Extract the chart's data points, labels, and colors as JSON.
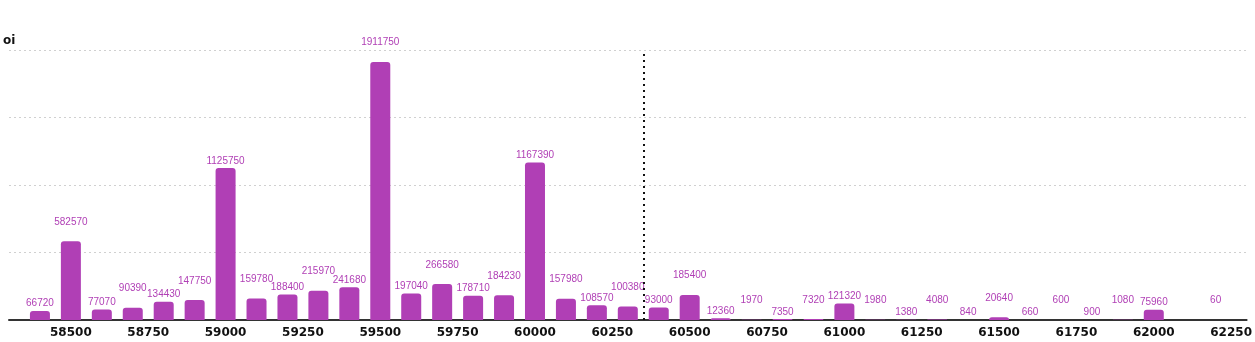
{
  "chart_data": {
    "type": "bar",
    "ylabel": "oi",
    "x": [
      58400,
      58500,
      58600,
      58700,
      58800,
      58900,
      59000,
      59100,
      59200,
      59300,
      59400,
      59500,
      59600,
      59700,
      59800,
      59900,
      60000,
      60100,
      60200,
      60300,
      60400,
      60500,
      60600,
      60700,
      60800,
      60900,
      61000,
      61100,
      61200,
      61300,
      61400,
      61500,
      61600,
      61700,
      61800,
      61900,
      62000,
      62200
    ],
    "values": [
      66720,
      582570,
      77070,
      90390,
      134430,
      147750,
      1125750,
      159780,
      188400,
      215970,
      241680,
      1911750,
      197040,
      266580,
      178710,
      184230,
      1167390,
      157980,
      108570,
      100380,
      93000,
      185400,
      12360,
      1970,
      7350,
      7320,
      121320,
      1980,
      1380,
      4080,
      840,
      20640,
      660,
      600,
      900,
      1080,
      75960,
      60
    ],
    "color": "#b03fb5",
    "data_labels": true,
    "xlim": [
      58300,
      62300
    ],
    "xticks": [
      58500,
      58750,
      59000,
      59250,
      59500,
      59750,
      60000,
      60250,
      60500,
      60750,
      61000,
      61250,
      61500,
      61750,
      62000,
      62250
    ],
    "ylim": [
      0,
      2000000
    ],
    "yticks": [
      {
        "value": 0,
        "label": null
      },
      {
        "value": 500000,
        "label": null
      },
      {
        "value": 1000000,
        "label": null
      },
      {
        "value": 1500000,
        "label": null
      },
      {
        "value": 2000000,
        "label": null
      }
    ],
    "grid": "y",
    "tick_labels": "x",
    "ref_lines": [
      {
        "axis": "x",
        "value": 60350,
        "color": "#111111",
        "line_style": "dotted"
      }
    ]
  }
}
